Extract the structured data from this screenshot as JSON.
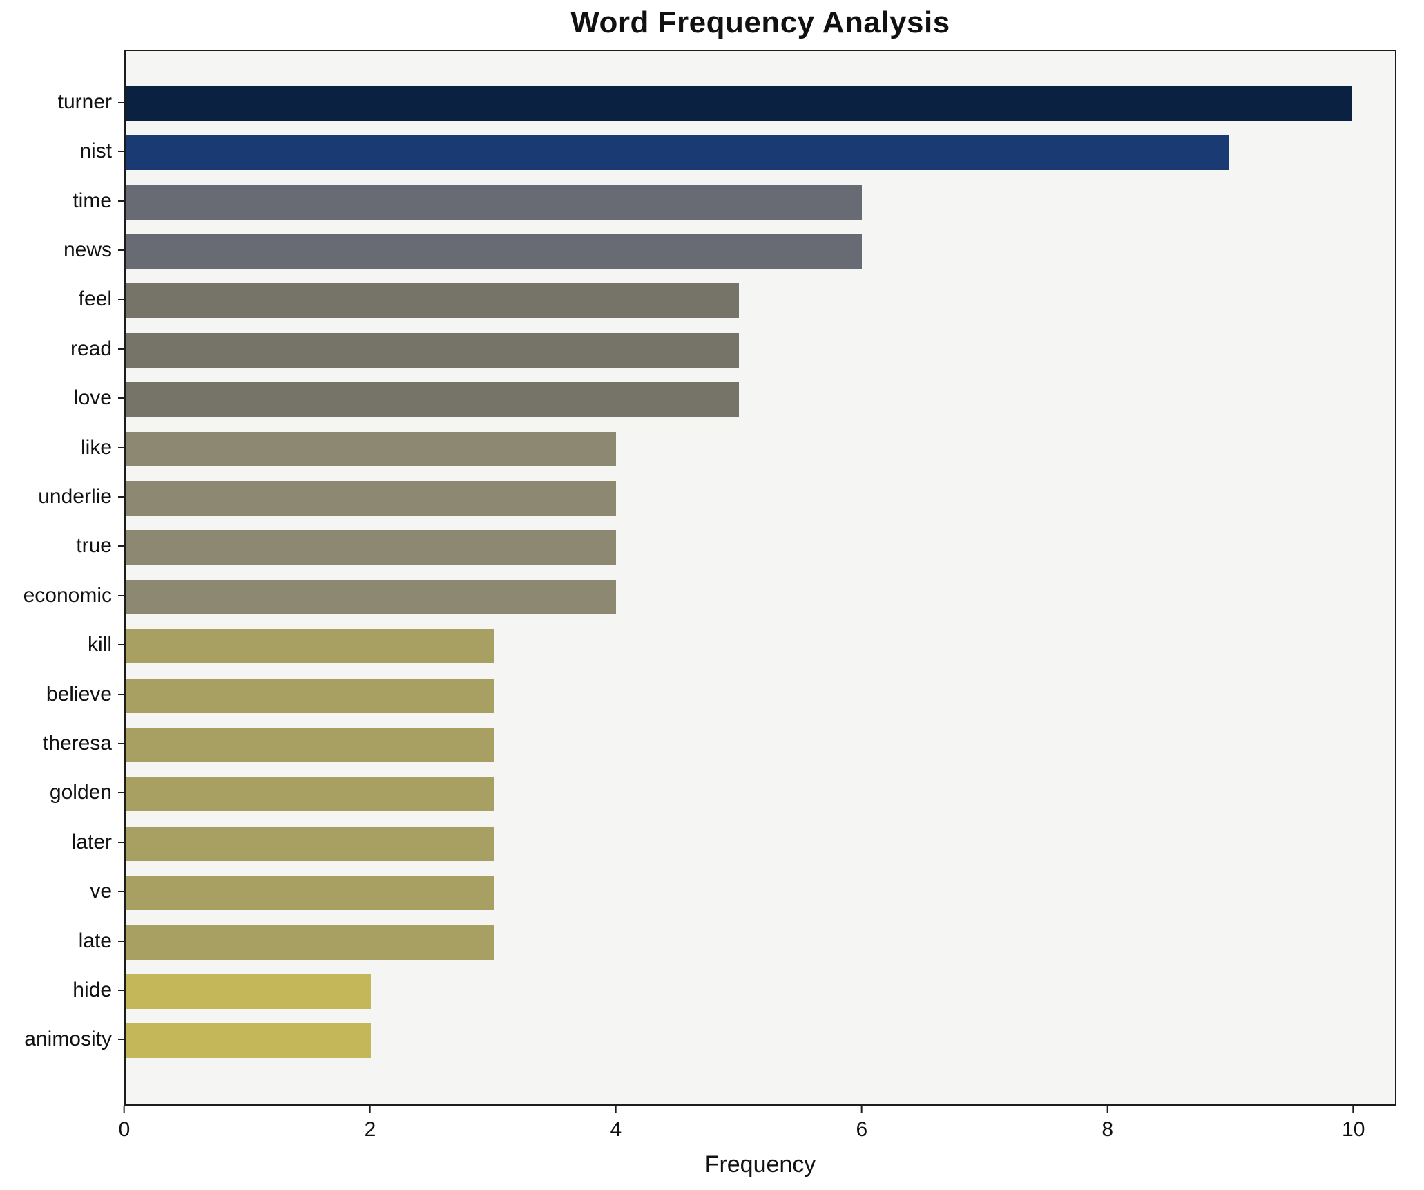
{
  "chart_data": {
    "type": "bar",
    "orientation": "horizontal",
    "title": "Word Frequency Analysis",
    "xlabel": "Frequency",
    "ylabel": "",
    "categories": [
      "turner",
      "nist",
      "time",
      "news",
      "feel",
      "read",
      "love",
      "like",
      "underlie",
      "true",
      "economic",
      "kill",
      "believe",
      "theresa",
      "golden",
      "later",
      "ve",
      "late",
      "hide",
      "animosity"
    ],
    "values": [
      10,
      9,
      6,
      6,
      5,
      5,
      5,
      4,
      4,
      4,
      4,
      3,
      3,
      3,
      3,
      3,
      3,
      3,
      2,
      2
    ],
    "bar_colors": [
      "#0b2142",
      "#1a3a74",
      "#686a74",
      "#686a74",
      "#767469",
      "#767469",
      "#767469",
      "#8d8871",
      "#8d8871",
      "#8d8871",
      "#8d8871",
      "#a89f63",
      "#a89f63",
      "#a89f63",
      "#a89f63",
      "#a89f63",
      "#a89f63",
      "#a89f63",
      "#c4b75a",
      "#c4b75a"
    ],
    "xlim": [
      0,
      10.35
    ],
    "xticks": [
      0,
      2,
      4,
      6,
      8,
      10
    ],
    "grid": false,
    "legend_position": "none",
    "plot_background": "#f5f5f3",
    "figure_background": "#ffffff"
  }
}
